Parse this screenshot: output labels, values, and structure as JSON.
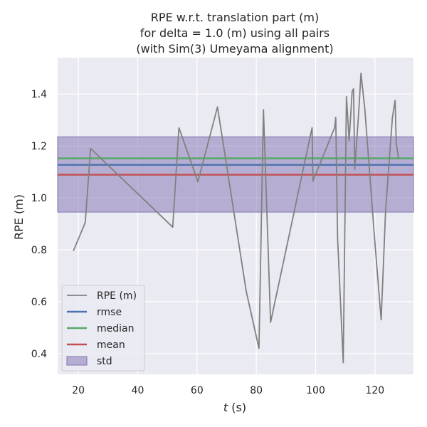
{
  "chart_data": {
    "type": "line",
    "title": [
      "RPE w.r.t. translation part (m)",
      "for delta = 1.0 (m) using all pairs",
      "(with Sim(3) Umeyama alignment)"
    ],
    "xlabel": "t (s)",
    "xlabel_var": "t",
    "xlabel_unit": " (s)",
    "ylabel": "RPE (m)",
    "xlim": [
      13,
      133
    ],
    "ylim": [
      0.32,
      1.54
    ],
    "xticks": [
      20,
      40,
      60,
      80,
      100,
      120
    ],
    "yticks": [
      0.4,
      0.6,
      0.8,
      1.0,
      1.2,
      1.4
    ],
    "ytick_labels": [
      "0.4",
      "0.6",
      "0.8",
      "1.0",
      "1.2",
      "1.4"
    ],
    "grid": true,
    "legend_position": "lower-left",
    "colors": {
      "background": "#eaeaf2",
      "grid": "#ffffff",
      "series": "#808080",
      "rmse": "#4c72b0",
      "median": "#55a868",
      "mean": "#c44e52",
      "std": "#8172b2"
    },
    "series": [
      {
        "name": "RPE (m)",
        "x": [
          18.3,
          22.3,
          24.1,
          51.8,
          53.9,
          60.3,
          66.9,
          76.6,
          80.9,
          82.4,
          84.8,
          98.8,
          99.1,
          106.4,
          106.8,
          107.4,
          109.3,
          110.4,
          111.3,
          112.3,
          112.8,
          113.2,
          114.6,
          115.3,
          116.6,
          120.1,
          122.1,
          123.6,
          125.9,
          126.8,
          127.2,
          128.0
        ],
        "y": [
          0.795,
          0.905,
          1.19,
          0.887,
          1.27,
          1.062,
          1.35,
          0.64,
          0.42,
          1.34,
          0.52,
          1.27,
          1.065,
          1.27,
          1.31,
          0.85,
          0.365,
          1.39,
          1.22,
          1.41,
          1.42,
          1.11,
          1.34,
          1.48,
          1.34,
          0.81,
          0.53,
          0.95,
          1.31,
          1.375,
          1.21,
          1.15
        ]
      }
    ],
    "stats": {
      "rmse": {
        "name": "rmse",
        "value": 1.127
      },
      "median": {
        "name": "median",
        "value": 1.152
      },
      "mean": {
        "name": "mean",
        "value": 1.089
      },
      "std": {
        "name": "std",
        "lower": 0.945,
        "upper": 1.235
      }
    },
    "legend": [
      "RPE (m)",
      "rmse",
      "median",
      "mean",
      "std"
    ]
  }
}
